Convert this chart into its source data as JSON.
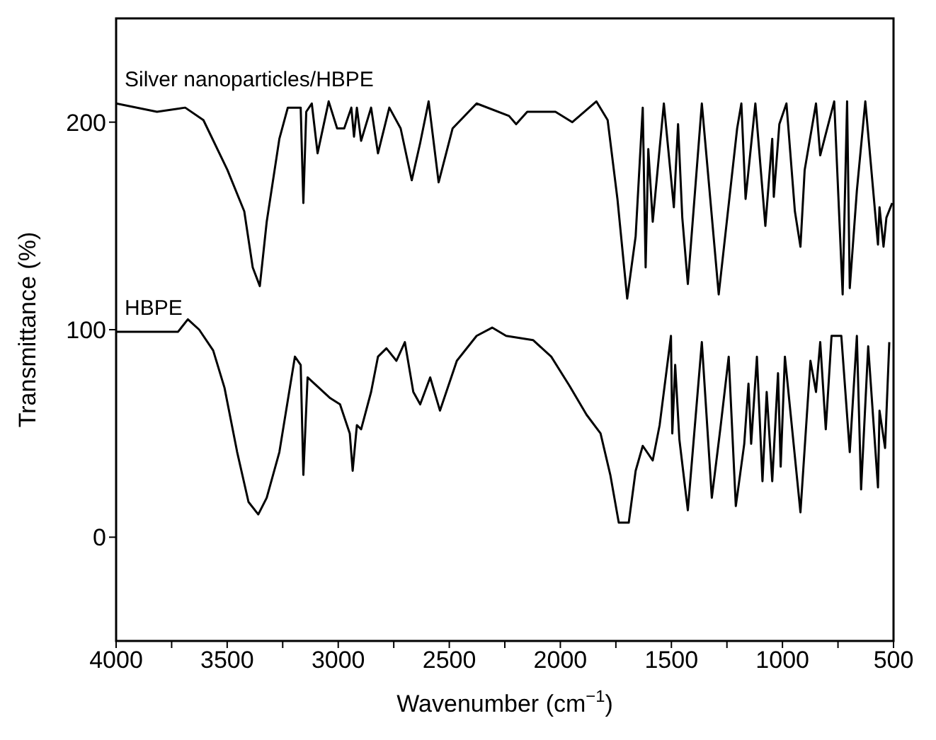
{
  "chart_data": {
    "type": "line",
    "xlabel": "Wavenumber (cm$^{−1}$)",
    "ylabel": "Transmittance (%)",
    "xlim": [
      4000,
      500
    ],
    "ylim": [
      -50,
      250
    ],
    "xticks": [
      4000,
      {
        "value": 3750,
        "label": null
      },
      3500,
      {
        "value": 3250,
        "label": null
      },
      3000,
      {
        "value": 2750,
        "label": null
      },
      2500,
      {
        "value": 2250,
        "label": null
      },
      2000,
      {
        "value": 1750,
        "label": null
      },
      1500,
      {
        "value": 1250,
        "label": null
      },
      1000,
      {
        "value": 750,
        "label": null
      },
      500
    ],
    "yticks": [
      0,
      100,
      200
    ],
    "marker": "none",
    "line_style": "solid",
    "series": [
      {
        "name": "Silver nanoparticles/HBPE",
        "color": "#000000",
        "x": [
          4000,
          3816,
          3689,
          3607,
          3499,
          3423,
          3385,
          3353,
          3322,
          3265,
          3227,
          3169,
          3157,
          3144,
          3119,
          3093,
          3043,
          3005,
          2973,
          2941,
          2929,
          2916,
          2897,
          2852,
          2821,
          2770,
          2719,
          2669,
          2631,
          2593,
          2548,
          2485,
          2377,
          2231,
          2199,
          2149,
          2022,
          1946,
          1838,
          1787,
          1743,
          1699,
          1661,
          1629,
          1616,
          1604,
          1584,
          1534,
          1489,
          1470,
          1451,
          1426,
          1363,
          1287,
          1204,
          1185,
          1166,
          1122,
          1077,
          1046,
          1039,
          1014,
          982,
          944,
          919,
          900,
          849,
          830,
          767,
          729,
          709,
          697,
          665,
          627,
          570,
          563,
          545,
          532,
          506
        ],
        "values": [
          209,
          205,
          207,
          201,
          177,
          157,
          130,
          121,
          152,
          192,
          207,
          207,
          161,
          205,
          209,
          185,
          210,
          197,
          197,
          207,
          193,
          207,
          191,
          207,
          185,
          207,
          197,
          172,
          190,
          210,
          171,
          197,
          209,
          203,
          199,
          205,
          205,
          200,
          210,
          201,
          163,
          115,
          145,
          207,
          130,
          187,
          152,
          209,
          159,
          199,
          154,
          122,
          209,
          117,
          197,
          209,
          163,
          209,
          150,
          192,
          164,
          199,
          209,
          157,
          140,
          177,
          209,
          184,
          210,
          117,
          210,
          120,
          167,
          210,
          141,
          159,
          140,
          154,
          161
        ]
      },
      {
        "name": "HBPE",
        "color": "#000000",
        "x": [
          4000,
          3861,
          3721,
          3677,
          3626,
          3563,
          3512,
          3455,
          3404,
          3360,
          3322,
          3265,
          3195,
          3169,
          3157,
          3138,
          3036,
          2992,
          2948,
          2935,
          2916,
          2897,
          2852,
          2821,
          2783,
          2738,
          2700,
          2662,
          2631,
          2586,
          2542,
          2466,
          2377,
          2307,
          2244,
          2123,
          2041,
          1959,
          1882,
          1819,
          1775,
          1737,
          1692,
          1661,
          1629,
          1584,
          1553,
          1502,
          1496,
          1483,
          1464,
          1426,
          1363,
          1318,
          1280,
          1242,
          1210,
          1172,
          1153,
          1141,
          1115,
          1090,
          1071,
          1046,
          1020,
          1008,
          989,
          919,
          874,
          849,
          830,
          805,
          779,
          735,
          697,
          665,
          646,
          614,
          570,
          563,
          538,
          519
        ],
        "values": [
          99,
          99,
          99,
          105,
          100,
          90,
          72,
          41,
          17,
          11,
          19,
          41,
          87,
          83,
          30,
          77,
          67,
          64,
          50,
          32,
          54,
          52,
          70,
          87,
          91,
          85,
          94,
          70,
          64,
          77,
          61,
          85,
          97,
          101,
          97,
          95,
          87,
          73,
          59,
          50,
          30,
          7,
          7,
          32,
          44,
          37,
          54,
          97,
          50,
          83,
          47,
          13,
          94,
          19,
          52,
          87,
          15,
          45,
          74,
          45,
          87,
          27,
          70,
          27,
          79,
          34,
          87,
          12,
          85,
          70,
          94,
          52,
          97,
          97,
          41,
          97,
          23,
          92,
          24,
          61,
          43,
          94
        ]
      }
    ]
  }
}
